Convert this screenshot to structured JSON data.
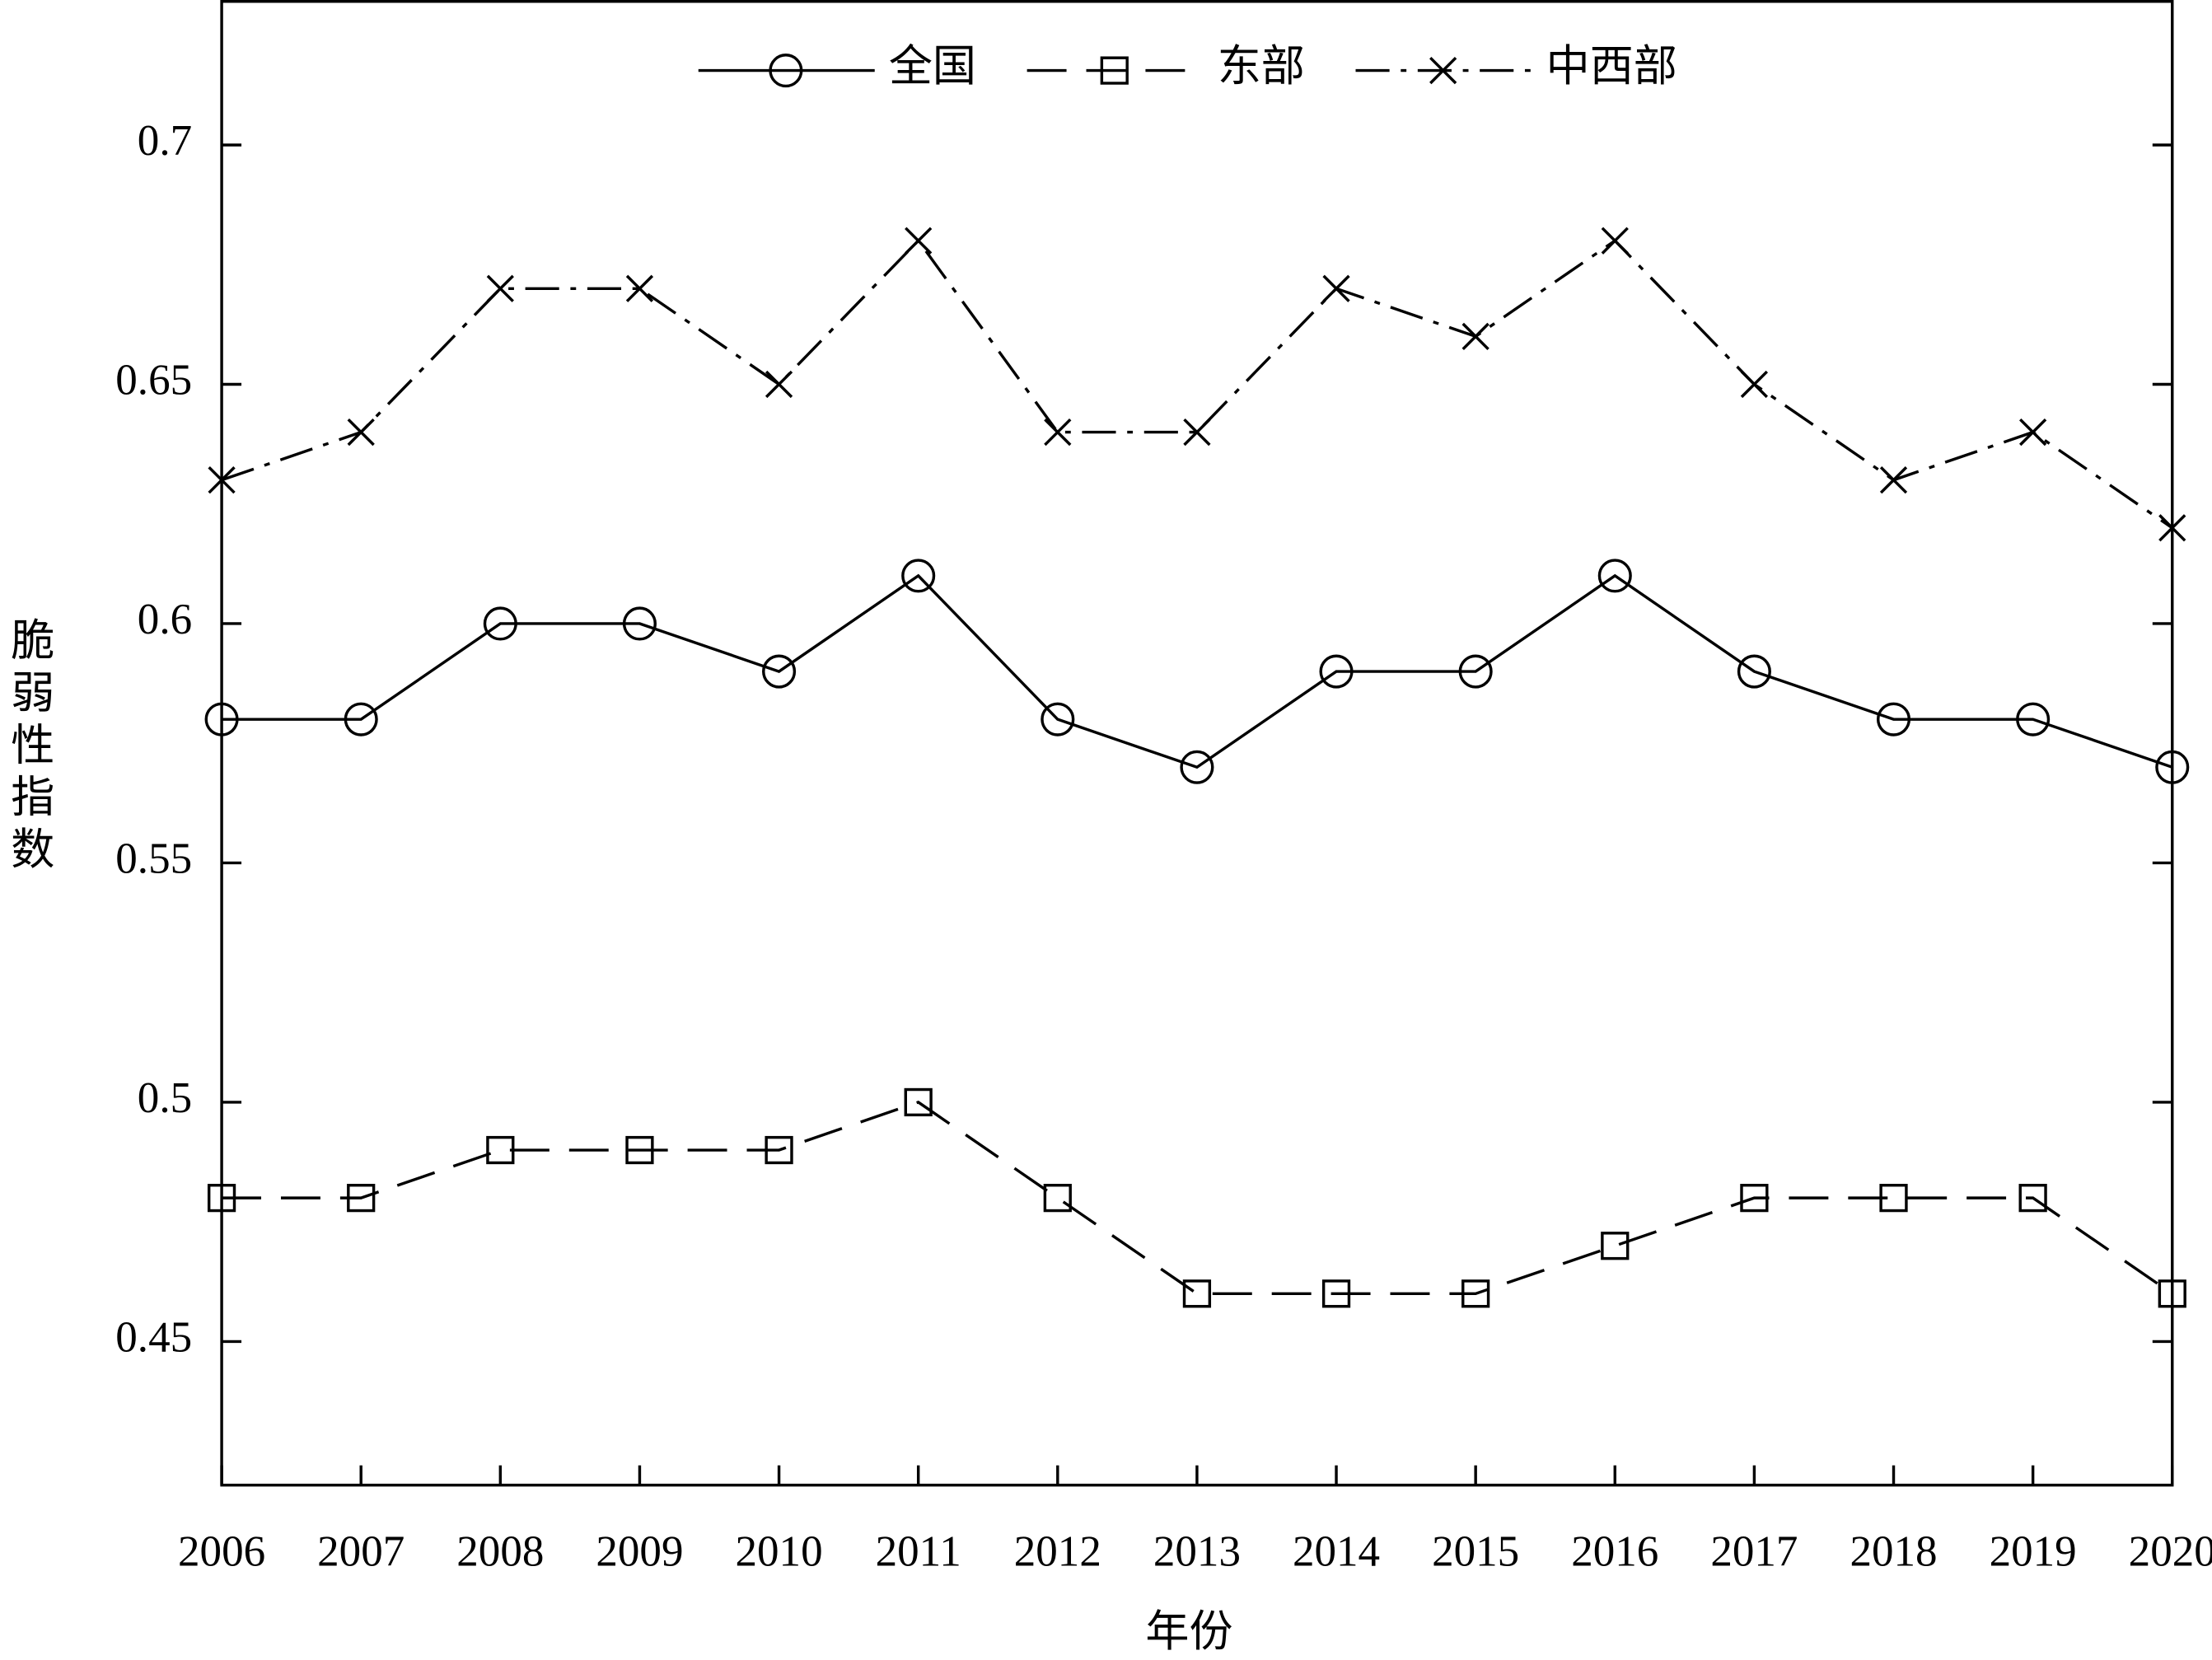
{
  "chart_data": {
    "type": "line",
    "x_label": "年份",
    "y_label": "脆弱性指数",
    "x": [
      2006,
      2007,
      2008,
      2009,
      2010,
      2011,
      2012,
      2013,
      2014,
      2015,
      2016,
      2017,
      2018,
      2019,
      2020
    ],
    "series": [
      {
        "name": "全国",
        "color": "#000000",
        "marker": "circle",
        "dash": "solid",
        "values": [
          0.58,
          0.58,
          0.6,
          0.6,
          0.59,
          0.61,
          0.58,
          0.57,
          0.59,
          0.59,
          0.61,
          0.59,
          0.58,
          0.58,
          0.57
        ]
      },
      {
        "name": "东部",
        "color": "#000000",
        "marker": "square",
        "dash": "dashed",
        "values": [
          0.48,
          0.48,
          0.49,
          0.49,
          0.49,
          0.5,
          0.48,
          0.46,
          0.46,
          0.46,
          0.47,
          0.48,
          0.48,
          0.48,
          0.46
        ]
      },
      {
        "name": "中西部",
        "color": "#000000",
        "marker": "x",
        "dash": "dashdot",
        "values": [
          0.63,
          0.64,
          0.67,
          0.67,
          0.65,
          0.68,
          0.64,
          0.64,
          0.67,
          0.66,
          0.68,
          0.65,
          0.63,
          0.64,
          0.62
        ]
      }
    ],
    "xlim": [
      2006,
      2020
    ],
    "xticks": [
      2006,
      2007,
      2008,
      2009,
      2010,
      2011,
      2012,
      2013,
      2014,
      2015,
      2016,
      2017,
      2018,
      2019,
      2020
    ],
    "ylim": [
      0.42,
      0.73
    ],
    "yticks": [
      0.45,
      0.5,
      0.55,
      0.6,
      0.65,
      0.7
    ],
    "grid": false,
    "legend": "top"
  }
}
